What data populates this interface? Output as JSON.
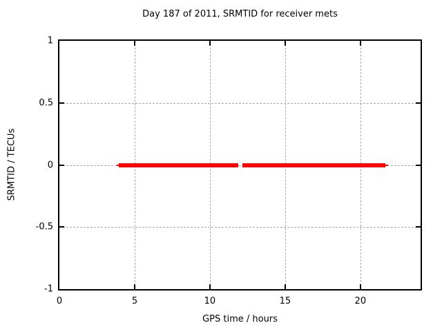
{
  "figure": {
    "title": "Day 187 of 2011, SRMTID for receiver mets",
    "xlabel": "GPS time / hours",
    "ylabel": "SRMTID / TECUs"
  },
  "colors": {
    "series_red": "#ff0000",
    "grid_gray": "#a6a6a6",
    "border_black": "#000000",
    "background": "#ffffff"
  },
  "chart_data": {
    "type": "line",
    "title": "Day 187 of 2011, SRMTID for receiver mets",
    "xlabel": "GPS time / hours",
    "ylabel": "SRMTID / TECUs",
    "xlim": [
      0,
      24
    ],
    "ylim": [
      -1,
      1
    ],
    "xticks": [
      0,
      5,
      10,
      15,
      20
    ],
    "yticks": [
      1,
      0.5,
      0,
      -0.5,
      -1
    ],
    "grid": true,
    "legend": "none",
    "series": [
      {
        "name": "SRMTID",
        "color": "#ff0000",
        "y": 0,
        "line_thickness_px": 6,
        "segments": [
          {
            "x_start": 3.95,
            "x_end": 11.9
          },
          {
            "x_start": 12.15,
            "x_end": 21.65
          }
        ],
        "thin_caps": [
          {
            "x_start": 3.8,
            "x_end": 3.95
          },
          {
            "x_start": 21.65,
            "x_end": 21.85
          }
        ]
      }
    ]
  }
}
